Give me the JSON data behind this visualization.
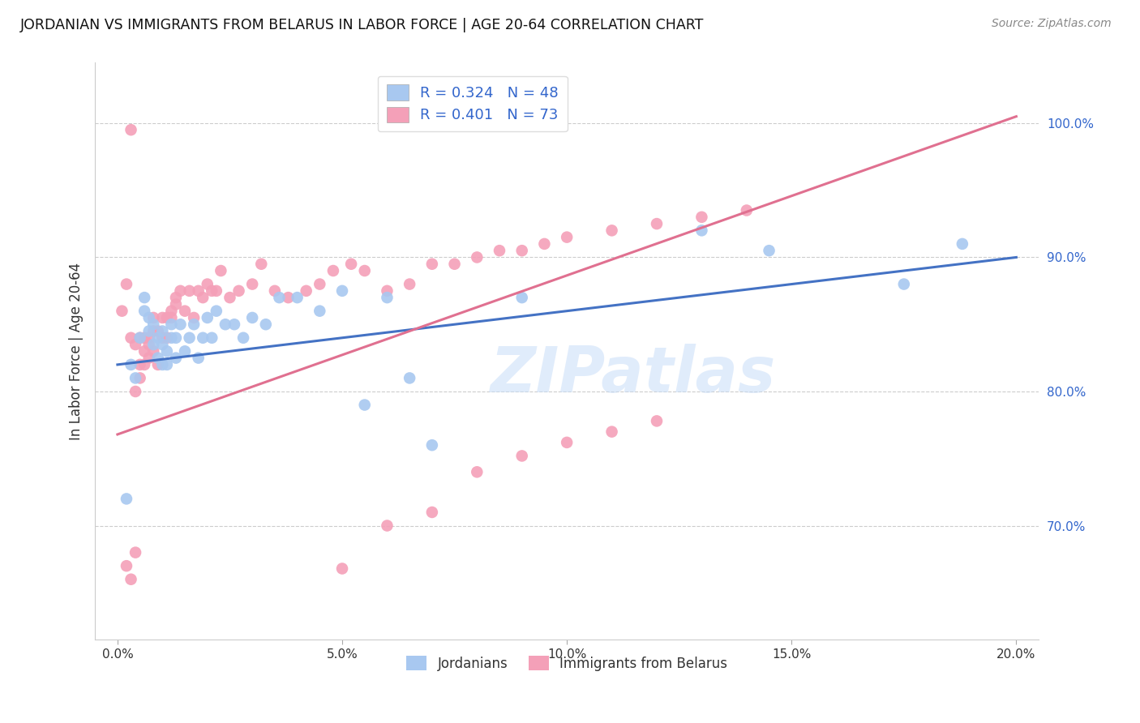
{
  "title": "JORDANIAN VS IMMIGRANTS FROM BELARUS IN LABOR FORCE | AGE 20-64 CORRELATION CHART",
  "source": "Source: ZipAtlas.com",
  "ylabel_label": "In Labor Force | Age 20-64",
  "x_ticks": [
    0.0,
    0.05,
    0.1,
    0.15,
    0.2
  ],
  "x_tick_labels": [
    "0.0%",
    "5.0%",
    "10.0%",
    "15.0%",
    "20.0%"
  ],
  "y_ticks": [
    0.7,
    0.8,
    0.9,
    1.0
  ],
  "y_tick_labels": [
    "70.0%",
    "80.0%",
    "90.0%",
    "100.0%"
  ],
  "xlim": [
    -0.005,
    0.205
  ],
  "ylim": [
    0.615,
    1.045
  ],
  "jordanian_R": 0.324,
  "jordanian_N": 48,
  "belarus_R": 0.401,
  "belarus_N": 73,
  "jordanian_color": "#a8c8f0",
  "belarus_color": "#f4a0b8",
  "jordanian_line_color": "#4472c4",
  "belarus_line_color": "#e07090",
  "watermark": "ZIPatlas",
  "legend_label_1": "Jordanians",
  "legend_label_2": "Immigrants from Belarus",
  "jline_x0": 0.0,
  "jline_y0": 0.82,
  "jline_x1": 0.2,
  "jline_y1": 0.9,
  "bline_x0": 0.0,
  "bline_y0": 0.768,
  "bline_x1": 0.2,
  "bline_y1": 1.005,
  "jordanian_x": [
    0.002,
    0.003,
    0.004,
    0.005,
    0.006,
    0.006,
    0.007,
    0.007,
    0.008,
    0.008,
    0.009,
    0.009,
    0.01,
    0.01,
    0.01,
    0.011,
    0.011,
    0.012,
    0.012,
    0.013,
    0.013,
    0.014,
    0.015,
    0.016,
    0.017,
    0.018,
    0.019,
    0.02,
    0.021,
    0.022,
    0.024,
    0.026,
    0.028,
    0.03,
    0.033,
    0.036,
    0.04,
    0.045,
    0.05,
    0.055,
    0.06,
    0.065,
    0.07,
    0.09,
    0.13,
    0.145,
    0.175,
    0.188
  ],
  "jordanian_y": [
    0.72,
    0.82,
    0.81,
    0.84,
    0.86,
    0.87,
    0.845,
    0.855,
    0.835,
    0.85,
    0.825,
    0.84,
    0.82,
    0.835,
    0.845,
    0.82,
    0.83,
    0.84,
    0.85,
    0.825,
    0.84,
    0.85,
    0.83,
    0.84,
    0.85,
    0.825,
    0.84,
    0.855,
    0.84,
    0.86,
    0.85,
    0.85,
    0.84,
    0.855,
    0.85,
    0.87,
    0.87,
    0.86,
    0.875,
    0.79,
    0.87,
    0.81,
    0.76,
    0.87,
    0.92,
    0.905,
    0.88,
    0.91
  ],
  "belarus_x": [
    0.001,
    0.002,
    0.003,
    0.003,
    0.004,
    0.004,
    0.005,
    0.005,
    0.005,
    0.006,
    0.006,
    0.006,
    0.007,
    0.007,
    0.007,
    0.008,
    0.008,
    0.008,
    0.009,
    0.009,
    0.01,
    0.01,
    0.011,
    0.011,
    0.012,
    0.012,
    0.013,
    0.013,
    0.014,
    0.015,
    0.016,
    0.017,
    0.018,
    0.019,
    0.02,
    0.021,
    0.022,
    0.023,
    0.025,
    0.027,
    0.03,
    0.032,
    0.035,
    0.038,
    0.042,
    0.045,
    0.048,
    0.052,
    0.055,
    0.06,
    0.065,
    0.07,
    0.075,
    0.08,
    0.085,
    0.09,
    0.095,
    0.1,
    0.11,
    0.12,
    0.13,
    0.14,
    0.05,
    0.06,
    0.07,
    0.08,
    0.09,
    0.1,
    0.11,
    0.12,
    0.002,
    0.003,
    0.004
  ],
  "belarus_y": [
    0.86,
    0.88,
    0.84,
    0.995,
    0.8,
    0.835,
    0.82,
    0.84,
    0.81,
    0.83,
    0.82,
    0.84,
    0.835,
    0.825,
    0.84,
    0.83,
    0.845,
    0.855,
    0.82,
    0.845,
    0.84,
    0.855,
    0.84,
    0.855,
    0.86,
    0.855,
    0.865,
    0.87,
    0.875,
    0.86,
    0.875,
    0.855,
    0.875,
    0.87,
    0.88,
    0.875,
    0.875,
    0.89,
    0.87,
    0.875,
    0.88,
    0.895,
    0.875,
    0.87,
    0.875,
    0.88,
    0.89,
    0.895,
    0.89,
    0.875,
    0.88,
    0.895,
    0.895,
    0.9,
    0.905,
    0.905,
    0.91,
    0.915,
    0.92,
    0.925,
    0.93,
    0.935,
    0.668,
    0.7,
    0.71,
    0.74,
    0.752,
    0.762,
    0.77,
    0.778,
    0.67,
    0.66,
    0.68
  ]
}
